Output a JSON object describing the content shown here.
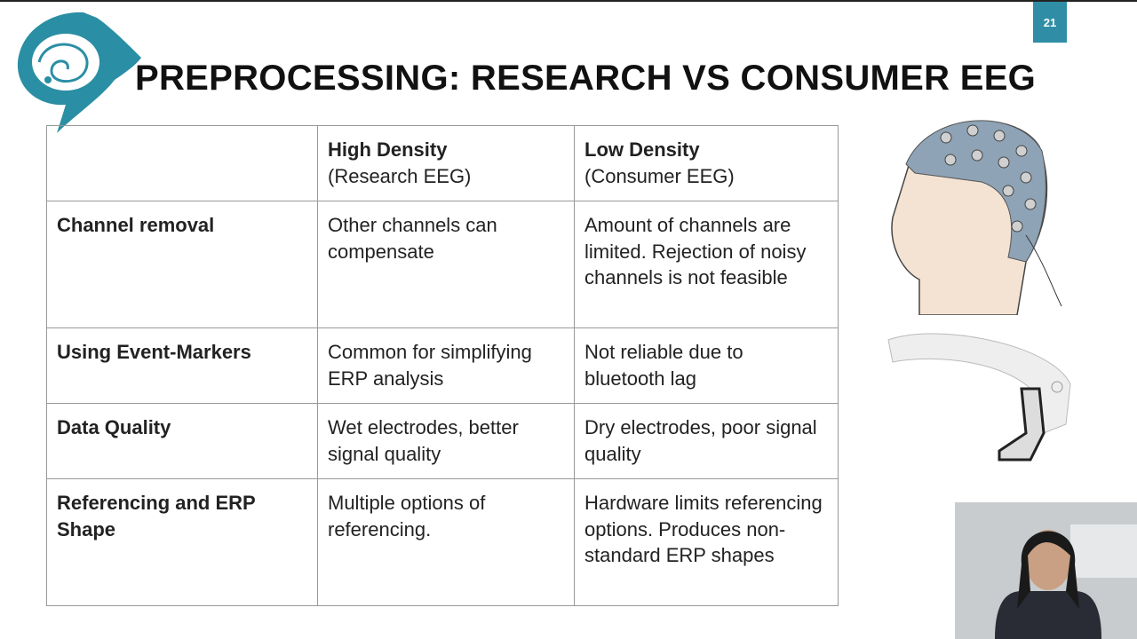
{
  "slide_number": "21",
  "title": "PREPROCESSING: RESEARCH VS CONSUMER EEG",
  "table": {
    "header": [
      {
        "bold": "High Density",
        "sub": "(Research EEG)"
      },
      {
        "bold": "Low Density",
        "sub": "(Consumer EEG)"
      }
    ],
    "rows": [
      [
        "Channel removal",
        "Other channels can compensate",
        "Amount of channels are limited. Rejection of noisy channels is not feasible"
      ],
      [
        "Using Event-Markers",
        "Common for simplifying ERP analysis",
        "Not reliable due to bluetooth lag"
      ],
      [
        "Data Quality",
        "Wet electrodes, better signal quality",
        "Dry electrodes, poor signal quality"
      ],
      [
        "Referencing and ERP Shape",
        "Multiple options of referencing.",
        "Hardware limits referencing options. Produces non-standard ERP shapes"
      ]
    ]
  }
}
